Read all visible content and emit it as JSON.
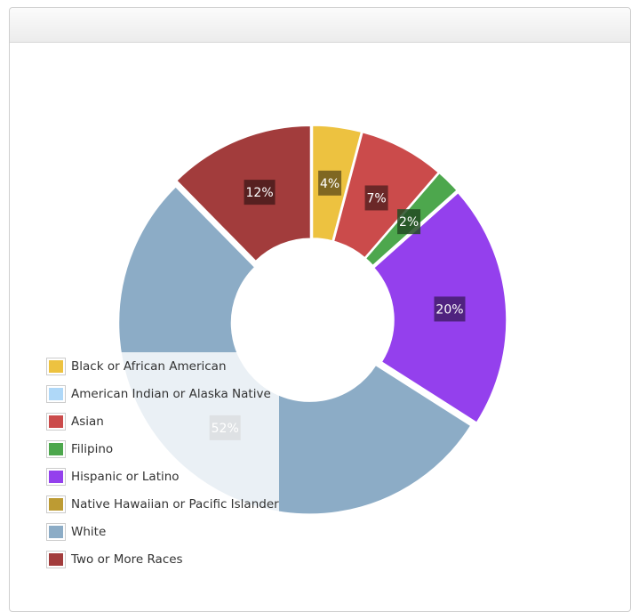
{
  "chart_data": {
    "type": "pie",
    "subtype": "donut",
    "title": "",
    "slices": [
      {
        "label": "Black or African American",
        "value": 4,
        "display": "4%",
        "color": "#EDC240"
      },
      {
        "label": "American Indian or Alaska Native",
        "value": 0,
        "display": "",
        "color": "#AFD8F8"
      },
      {
        "label": "Asian",
        "value": 7,
        "display": "7%",
        "color": "#CB4B4B"
      },
      {
        "label": "Filipino",
        "value": 2,
        "display": "2%",
        "color": "#4DA74D"
      },
      {
        "label": "Hispanic or Latino",
        "value": 20,
        "display": "20%",
        "color": "#9440ED"
      },
      {
        "label": "Native Hawaiian or Pacific Islander",
        "value": 0,
        "display": "",
        "color": "#BD9B33"
      },
      {
        "label": "White",
        "value": 52,
        "display": "52%",
        "color": "#8CACC6"
      },
      {
        "label": "Two or More Races",
        "value": 12,
        "display": "12%",
        "color": "#A23C3C"
      }
    ],
    "legend_position": "bottom-left"
  }
}
